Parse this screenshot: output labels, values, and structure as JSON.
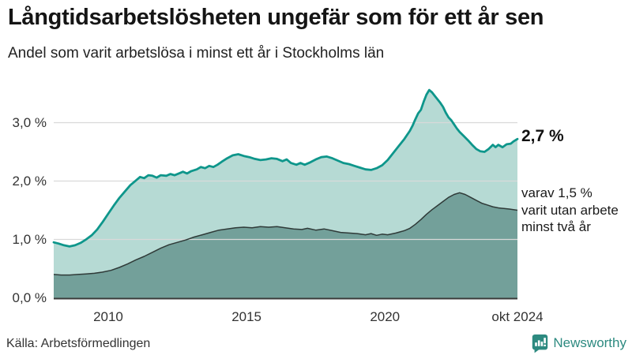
{
  "header": {
    "title": "Långtidsarbetslösheten ungefär som för ett år sen",
    "subtitle": "Andel som varit arbetslösa i minst ett år i Stockholms län"
  },
  "annotations": {
    "end_value": "2,7 %",
    "secondary_note": "varav 1,5 %\nvarit utan arbete\nminst två år"
  },
  "footer": {
    "source": "Källa: Arbetsförmedlingen",
    "logo_text": "Newsworthy"
  },
  "colors": {
    "series1_line": "#0e968b",
    "series1_fill": "#b6dad4",
    "series2_line": "#2f3a38",
    "series2_fill": "#73a09a",
    "gridline": "#d9d9d9",
    "baseline": "#3a3a3a",
    "brand_teal": "#2d8a80"
  },
  "chart_data": {
    "type": "area",
    "title": "Långtidsarbetslösheten ungefär som för ett år sen",
    "subtitle": "Andel som varit arbetslösa i minst ett år i Stockholms län",
    "unit": "%",
    "xlim": [
      2008.03,
      2024.79
    ],
    "ylim": [
      0,
      3.75
    ],
    "grid": "horizontal",
    "y_ticks": [
      {
        "label": "0,0 %",
        "value": 0
      },
      {
        "label": "1,0 %",
        "value": 1
      },
      {
        "label": "2,0 %",
        "value": 2
      },
      {
        "label": "3,0 %",
        "value": 3
      }
    ],
    "x_ticks": [
      {
        "label": "2010",
        "year": 2010
      },
      {
        "label": "2015",
        "year": 2015
      },
      {
        "label": "2020",
        "year": 2020
      },
      {
        "label": "okt 2024",
        "year": 2024.79
      }
    ],
    "series": [
      {
        "name": "Arbetslösa minst ett år",
        "end_label": "2,7 %",
        "points": [
          [
            2008.03,
            0.95
          ],
          [
            2008.2,
            0.93
          ],
          [
            2008.4,
            0.9
          ],
          [
            2008.6,
            0.88
          ],
          [
            2008.8,
            0.9
          ],
          [
            2009.0,
            0.94
          ],
          [
            2009.2,
            1.0
          ],
          [
            2009.4,
            1.07
          ],
          [
            2009.6,
            1.17
          ],
          [
            2009.8,
            1.3
          ],
          [
            2010.0,
            1.44
          ],
          [
            2010.2,
            1.58
          ],
          [
            2010.4,
            1.71
          ],
          [
            2010.6,
            1.82
          ],
          [
            2010.8,
            1.93
          ],
          [
            2011.0,
            2.01
          ],
          [
            2011.15,
            2.07
          ],
          [
            2011.3,
            2.05
          ],
          [
            2011.45,
            2.1
          ],
          [
            2011.6,
            2.09
          ],
          [
            2011.75,
            2.06
          ],
          [
            2011.9,
            2.1
          ],
          [
            2012.1,
            2.09
          ],
          [
            2012.25,
            2.12
          ],
          [
            2012.4,
            2.1
          ],
          [
            2012.55,
            2.13
          ],
          [
            2012.7,
            2.16
          ],
          [
            2012.85,
            2.13
          ],
          [
            2013.0,
            2.17
          ],
          [
            2013.2,
            2.2
          ],
          [
            2013.35,
            2.24
          ],
          [
            2013.5,
            2.22
          ],
          [
            2013.65,
            2.26
          ],
          [
            2013.8,
            2.24
          ],
          [
            2013.95,
            2.28
          ],
          [
            2014.1,
            2.33
          ],
          [
            2014.3,
            2.39
          ],
          [
            2014.5,
            2.44
          ],
          [
            2014.7,
            2.46
          ],
          [
            2014.9,
            2.43
          ],
          [
            2015.1,
            2.41
          ],
          [
            2015.3,
            2.38
          ],
          [
            2015.5,
            2.36
          ],
          [
            2015.7,
            2.37
          ],
          [
            2015.9,
            2.39
          ],
          [
            2016.1,
            2.38
          ],
          [
            2016.3,
            2.34
          ],
          [
            2016.45,
            2.37
          ],
          [
            2016.6,
            2.31
          ],
          [
            2016.8,
            2.28
          ],
          [
            2016.95,
            2.31
          ],
          [
            2017.1,
            2.28
          ],
          [
            2017.3,
            2.32
          ],
          [
            2017.5,
            2.37
          ],
          [
            2017.7,
            2.41
          ],
          [
            2017.9,
            2.42
          ],
          [
            2018.1,
            2.39
          ],
          [
            2018.3,
            2.35
          ],
          [
            2018.5,
            2.31
          ],
          [
            2018.7,
            2.29
          ],
          [
            2018.9,
            2.26
          ],
          [
            2019.1,
            2.23
          ],
          [
            2019.3,
            2.2
          ],
          [
            2019.5,
            2.19
          ],
          [
            2019.7,
            2.22
          ],
          [
            2019.9,
            2.27
          ],
          [
            2020.1,
            2.36
          ],
          [
            2020.3,
            2.48
          ],
          [
            2020.5,
            2.6
          ],
          [
            2020.7,
            2.72
          ],
          [
            2020.9,
            2.86
          ],
          [
            2021.0,
            2.95
          ],
          [
            2021.1,
            3.06
          ],
          [
            2021.2,
            3.16
          ],
          [
            2021.3,
            3.22
          ],
          [
            2021.4,
            3.36
          ],
          [
            2021.5,
            3.48
          ],
          [
            2021.6,
            3.56
          ],
          [
            2021.7,
            3.52
          ],
          [
            2021.8,
            3.46
          ],
          [
            2021.9,
            3.4
          ],
          [
            2022.0,
            3.34
          ],
          [
            2022.1,
            3.27
          ],
          [
            2022.2,
            3.17
          ],
          [
            2022.3,
            3.09
          ],
          [
            2022.4,
            3.04
          ],
          [
            2022.5,
            2.97
          ],
          [
            2022.6,
            2.9
          ],
          [
            2022.7,
            2.84
          ],
          [
            2022.85,
            2.77
          ],
          [
            2023.0,
            2.7
          ],
          [
            2023.15,
            2.62
          ],
          [
            2023.3,
            2.55
          ],
          [
            2023.45,
            2.51
          ],
          [
            2023.6,
            2.5
          ],
          [
            2023.75,
            2.55
          ],
          [
            2023.9,
            2.62
          ],
          [
            2024.0,
            2.58
          ],
          [
            2024.1,
            2.62
          ],
          [
            2024.25,
            2.58
          ],
          [
            2024.4,
            2.63
          ],
          [
            2024.55,
            2.64
          ],
          [
            2024.65,
            2.68
          ],
          [
            2024.79,
            2.72
          ]
        ]
      },
      {
        "name": "Arbetslösa minst två år",
        "end_label": "1,5 %",
        "points": [
          [
            2008.03,
            0.4
          ],
          [
            2008.3,
            0.39
          ],
          [
            2008.6,
            0.39
          ],
          [
            2008.9,
            0.4
          ],
          [
            2009.2,
            0.41
          ],
          [
            2009.5,
            0.42
          ],
          [
            2009.8,
            0.44
          ],
          [
            2010.1,
            0.47
          ],
          [
            2010.4,
            0.52
          ],
          [
            2010.7,
            0.58
          ],
          [
            2011.0,
            0.65
          ],
          [
            2011.3,
            0.71
          ],
          [
            2011.6,
            0.78
          ],
          [
            2011.9,
            0.85
          ],
          [
            2012.2,
            0.91
          ],
          [
            2012.5,
            0.95
          ],
          [
            2012.8,
            0.99
          ],
          [
            2013.1,
            1.04
          ],
          [
            2013.4,
            1.08
          ],
          [
            2013.7,
            1.12
          ],
          [
            2014.0,
            1.16
          ],
          [
            2014.3,
            1.18
          ],
          [
            2014.6,
            1.2
          ],
          [
            2014.9,
            1.21
          ],
          [
            2015.2,
            1.2
          ],
          [
            2015.5,
            1.22
          ],
          [
            2015.8,
            1.21
          ],
          [
            2016.1,
            1.22
          ],
          [
            2016.4,
            1.2
          ],
          [
            2016.7,
            1.18
          ],
          [
            2017.0,
            1.17
          ],
          [
            2017.2,
            1.19
          ],
          [
            2017.5,
            1.16
          ],
          [
            2017.8,
            1.18
          ],
          [
            2018.1,
            1.15
          ],
          [
            2018.4,
            1.12
          ],
          [
            2018.7,
            1.11
          ],
          [
            2019.0,
            1.1
          ],
          [
            2019.3,
            1.08
          ],
          [
            2019.5,
            1.1
          ],
          [
            2019.7,
            1.07
          ],
          [
            2019.9,
            1.09
          ],
          [
            2020.1,
            1.08
          ],
          [
            2020.4,
            1.11
          ],
          [
            2020.7,
            1.15
          ],
          [
            2020.9,
            1.19
          ],
          [
            2021.1,
            1.26
          ],
          [
            2021.3,
            1.34
          ],
          [
            2021.5,
            1.43
          ],
          [
            2021.7,
            1.51
          ],
          [
            2021.9,
            1.58
          ],
          [
            2022.1,
            1.65
          ],
          [
            2022.3,
            1.72
          ],
          [
            2022.5,
            1.77
          ],
          [
            2022.7,
            1.8
          ],
          [
            2022.9,
            1.77
          ],
          [
            2023.1,
            1.72
          ],
          [
            2023.3,
            1.67
          ],
          [
            2023.5,
            1.62
          ],
          [
            2023.7,
            1.59
          ],
          [
            2023.9,
            1.56
          ],
          [
            2024.1,
            1.54
          ],
          [
            2024.3,
            1.53
          ],
          [
            2024.5,
            1.52
          ],
          [
            2024.79,
            1.5
          ]
        ]
      }
    ]
  }
}
